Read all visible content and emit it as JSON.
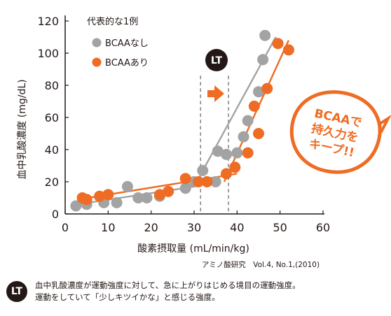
{
  "chart_data": {
    "type": "scatter",
    "xlabel": "酸素摂取量 (mL/min/kg)",
    "ylabel": "血中乳酸濃度 (mg/dL)",
    "xlim": [
      0,
      60
    ],
    "ylim": [
      0,
      120
    ],
    "xticks": [
      0,
      10,
      20,
      30,
      40,
      50,
      60
    ],
    "yticks": [
      0,
      20,
      40,
      60,
      80,
      100,
      120
    ],
    "grid": false,
    "legend_title": "代表的な1例",
    "legend_position": "top-left",
    "series": [
      {
        "name": "BCAAなし",
        "color": "#a3a3a3",
        "points": [
          [
            2.5,
            5
          ],
          [
            5,
            6
          ],
          [
            9,
            7
          ],
          [
            12,
            7
          ],
          [
            14.5,
            17
          ],
          [
            17,
            10
          ],
          [
            19,
            10
          ],
          [
            22,
            11
          ],
          [
            28,
            16
          ],
          [
            30,
            20
          ],
          [
            32,
            27
          ],
          [
            35,
            20
          ],
          [
            35.5,
            39
          ],
          [
            37.5,
            37
          ],
          [
            40,
            38
          ],
          [
            41.5,
            48
          ],
          [
            42.5,
            58
          ],
          [
            45,
            76
          ],
          [
            46,
            96
          ],
          [
            46.5,
            111
          ]
        ],
        "trend_lines": [
          [
            [
              3,
              6
            ],
            [
              30,
              17
            ]
          ],
          [
            [
              30,
              17
            ],
            [
              49,
              110
            ]
          ]
        ]
      },
      {
        "name": "BCAAあり",
        "color": "#ee6c23",
        "points": [
          [
            4,
            10
          ],
          [
            5,
            9
          ],
          [
            8,
            11
          ],
          [
            10,
            12
          ],
          [
            22,
            12
          ],
          [
            24,
            14
          ],
          [
            28,
            22
          ],
          [
            31,
            20
          ],
          [
            33,
            20
          ],
          [
            37.5,
            25
          ],
          [
            39.5,
            29
          ],
          [
            42.5,
            38
          ],
          [
            44,
            67
          ],
          [
            45,
            50
          ],
          [
            47,
            78
          ],
          [
            49.5,
            106
          ],
          [
            52,
            102
          ]
        ],
        "trend_lines": [
          [
            [
              3,
              9
            ],
            [
              40,
              25
            ]
          ],
          [
            [
              37,
              20
            ],
            [
              52,
              108
            ]
          ]
        ]
      }
    ],
    "lt_markers": [
      {
        "label": "LT",
        "x": 31.5
      },
      {
        "label": "LT",
        "x": 38
      }
    ],
    "annotations": {
      "lt_badge": "LT",
      "stamp_lines": [
        "BCAAで",
        "持久力を",
        "キープ!!"
      ]
    }
  },
  "source": "アミノ酸研究　Vol.4, No.1,(2010)",
  "note": {
    "badge": "LT",
    "lines": [
      "血中乳酸濃度が運動強度に対して、急に上がりはじめる境目の運動強度。",
      "運動をしていて「少しキツイかな」と感じる強度。"
    ]
  },
  "colors": {
    "gray": "#a3a3a3",
    "orange": "#ee6c23",
    "text": "#231815",
    "dashed": "#777777"
  }
}
